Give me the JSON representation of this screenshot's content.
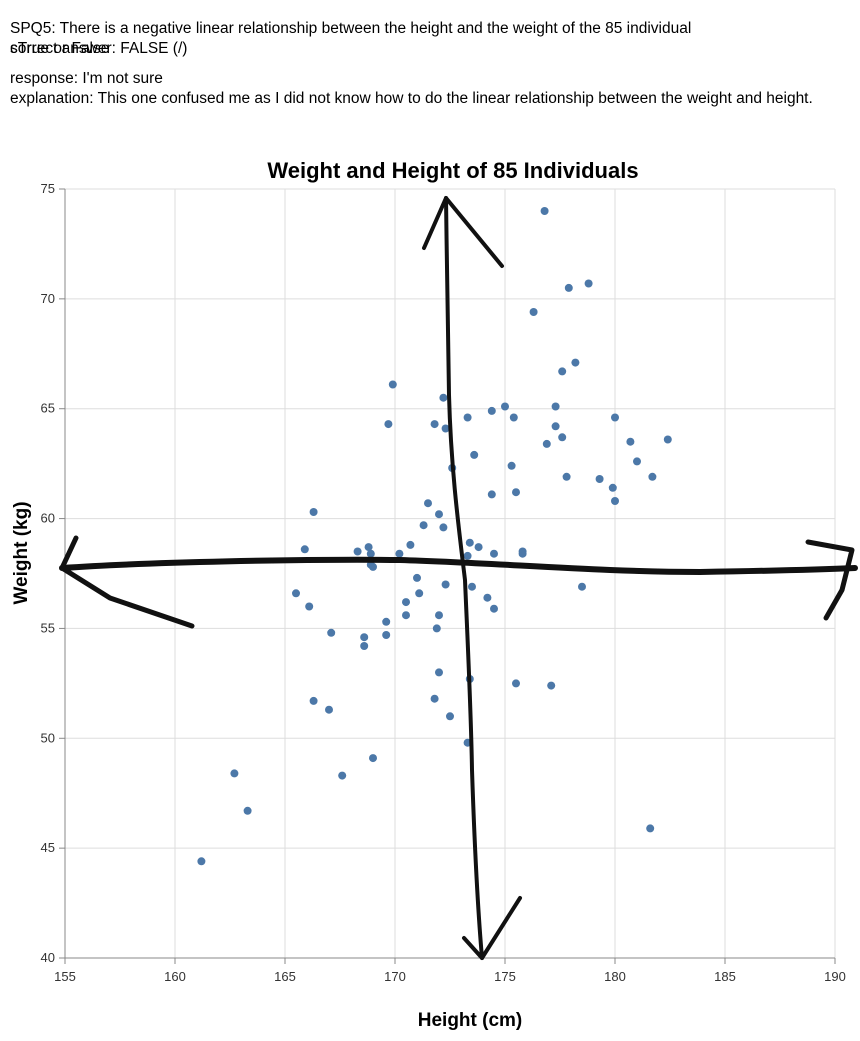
{
  "header": {
    "question": "SPQ5: There is a negative linear relationship between the height and the weight of the 85 individual",
    "overlap_a": "correct answer: FALSE (/)",
    "overlap_b": "sTrue or False",
    "response": "response: I'm not sure",
    "explanation": "explanation: This one confused me as I did not know how to do the linear relationship between the weight and height."
  },
  "chart_data": {
    "type": "scatter",
    "title": "Weight and Height of 85 Individuals",
    "xlabel": "Height (cm)",
    "ylabel": "Weight (kg)",
    "xlim": [
      155,
      190
    ],
    "ylim": [
      40,
      75
    ],
    "xticks": [
      "155",
      "160",
      "165",
      "170",
      "175",
      "180",
      "185",
      "190"
    ],
    "yticks": [
      "40",
      "45",
      "50",
      "55",
      "60",
      "65",
      "70",
      "75"
    ],
    "grid": true,
    "point_color": "#4c78a8",
    "points": [
      [
        176.8,
        74.0
      ],
      [
        178.8,
        70.7
      ],
      [
        177.9,
        70.5
      ],
      [
        176.3,
        69.4
      ],
      [
        178.2,
        67.1
      ],
      [
        177.6,
        66.7
      ],
      [
        169.9,
        66.1
      ],
      [
        172.2,
        65.5
      ],
      [
        175.0,
        65.1
      ],
      [
        177.3,
        65.1
      ],
      [
        174.4,
        64.9
      ],
      [
        173.3,
        64.6
      ],
      [
        175.4,
        64.6
      ],
      [
        180.0,
        64.6
      ],
      [
        169.7,
        64.3
      ],
      [
        171.8,
        64.3
      ],
      [
        172.3,
        64.1
      ],
      [
        177.3,
        64.2
      ],
      [
        177.6,
        63.7
      ],
      [
        176.9,
        63.4
      ],
      [
        180.7,
        63.5
      ],
      [
        182.4,
        63.6
      ],
      [
        173.6,
        62.9
      ],
      [
        181.0,
        62.6
      ],
      [
        172.6,
        62.3
      ],
      [
        175.3,
        62.4
      ],
      [
        177.8,
        61.9
      ],
      [
        179.3,
        61.8
      ],
      [
        181.7,
        61.9
      ],
      [
        179.9,
        61.4
      ],
      [
        174.4,
        61.1
      ],
      [
        175.5,
        61.2
      ],
      [
        180.0,
        60.8
      ],
      [
        171.5,
        60.7
      ],
      [
        166.3,
        60.3
      ],
      [
        172.0,
        60.2
      ],
      [
        171.3,
        59.7
      ],
      [
        172.2,
        59.6
      ],
      [
        173.4,
        58.9
      ],
      [
        173.8,
        58.7
      ],
      [
        165.9,
        58.6
      ],
      [
        168.8,
        58.7
      ],
      [
        170.7,
        58.8
      ],
      [
        168.3,
        58.5
      ],
      [
        168.9,
        58.4
      ],
      [
        170.2,
        58.4
      ],
      [
        173.3,
        58.3
      ],
      [
        174.5,
        58.4
      ],
      [
        175.8,
        58.5
      ],
      [
        175.8,
        58.4
      ],
      [
        168.9,
        57.9
      ],
      [
        169.0,
        57.8
      ],
      [
        171.0,
        57.3
      ],
      [
        172.3,
        57.0
      ],
      [
        173.5,
        56.9
      ],
      [
        178.5,
        56.9
      ],
      [
        165.5,
        56.6
      ],
      [
        171.1,
        56.6
      ],
      [
        174.2,
        56.4
      ],
      [
        170.5,
        56.2
      ],
      [
        166.1,
        56.0
      ],
      [
        174.5,
        55.9
      ],
      [
        170.5,
        55.6
      ],
      [
        172.0,
        55.6
      ],
      [
        167.1,
        54.8
      ],
      [
        169.6,
        54.7
      ],
      [
        169.6,
        55.3
      ],
      [
        171.9,
        55.0
      ],
      [
        168.6,
        54.6
      ],
      [
        168.6,
        54.2
      ],
      [
        172.0,
        53.0
      ],
      [
        173.4,
        52.7
      ],
      [
        175.5,
        52.5
      ],
      [
        177.1,
        52.4
      ],
      [
        166.3,
        51.7
      ],
      [
        171.8,
        51.8
      ],
      [
        167.0,
        51.3
      ],
      [
        172.5,
        51.0
      ],
      [
        173.3,
        49.8
      ],
      [
        169.0,
        49.1
      ],
      [
        162.7,
        48.4
      ],
      [
        167.6,
        48.3
      ],
      [
        163.3,
        46.7
      ],
      [
        181.6,
        45.9
      ],
      [
        161.2,
        44.4
      ]
    ]
  }
}
